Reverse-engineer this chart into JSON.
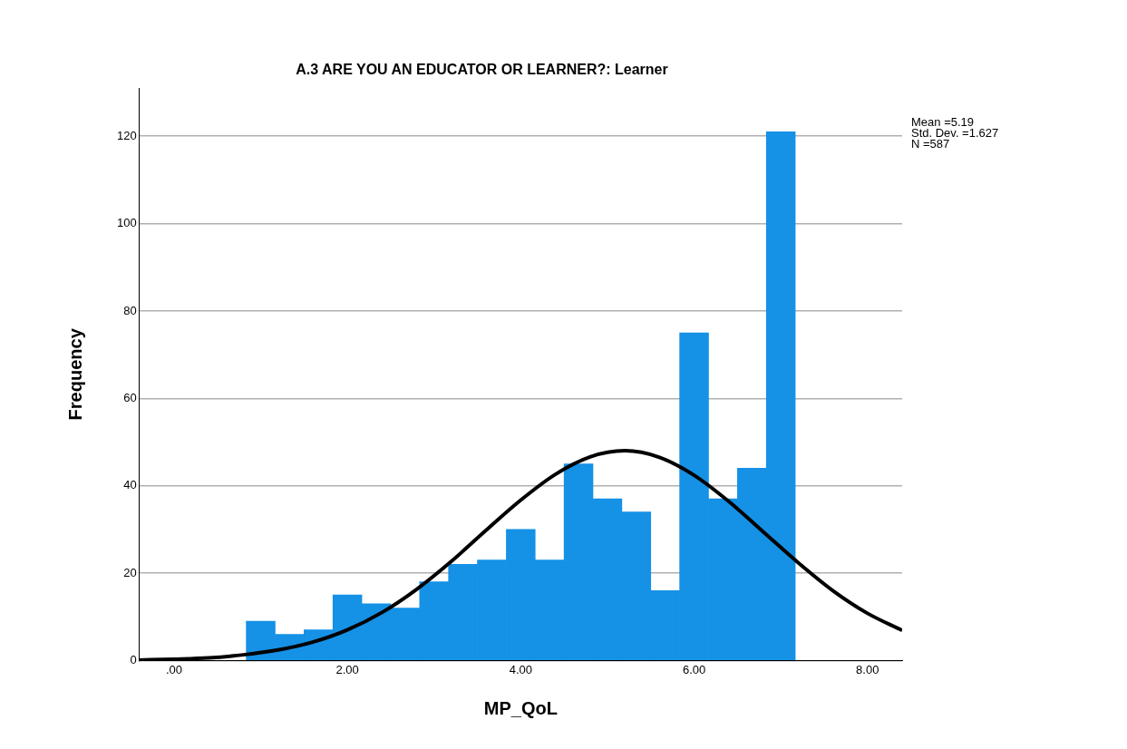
{
  "chart_data": {
    "type": "histogram",
    "title": "A.3 ARE YOU AN EDUCATOR OR LEARNER?: Learner",
    "xlabel": "MP_QoL",
    "ylabel": "Frequency",
    "bins": [
      0.833,
      1.167,
      1.5,
      1.833,
      2.167,
      2.5,
      2.833,
      3.167,
      3.5,
      3.833,
      4.167,
      4.5,
      4.833,
      5.167,
      5.5,
      5.833,
      6.167,
      6.5,
      6.833,
      7.167
    ],
    "values": [
      9,
      6,
      7,
      15,
      13,
      12,
      18,
      22,
      23,
      30,
      23,
      45,
      37,
      34,
      16,
      75,
      37,
      44,
      121
    ],
    "color": "#1591e6",
    "series": [
      {
        "type": "line",
        "color": "#000000",
        "x": [
          -0.4,
          0,
          0.4,
          0.8,
          1.2,
          1.6,
          2.0,
          2.4,
          2.8,
          3.2,
          3.6,
          4.0,
          4.4,
          4.8,
          5.2,
          5.6,
          6.0,
          6.4,
          6.8,
          7.2,
          7.6,
          8.0,
          8.4
        ],
        "values": [
          0.1,
          0.3,
          0.6,
          1.3,
          2.4,
          4.2,
          7.0,
          11.0,
          16.3,
          22.7,
          29.8,
          36.7,
          42.6,
          46.6,
          48.0,
          46.5,
          42.4,
          36.4,
          29.4,
          22.4,
          16.0,
          10.8,
          6.9
        ]
      }
    ],
    "xlim": [
      -0.4,
      8.4
    ],
    "xticks": [
      {
        "value": 0,
        "label": ".00"
      },
      {
        "value": 2,
        "label": "2.00"
      },
      {
        "value": 4,
        "label": "4.00"
      },
      {
        "value": 6,
        "label": "6.00"
      },
      {
        "value": 8,
        "label": "8.00"
      }
    ],
    "ylim": [
      0,
      131
    ],
    "yticks": [
      0,
      20,
      40,
      60,
      80,
      100,
      120
    ],
    "grid": "y",
    "annotations": [
      "Mean =5.19",
      "Std. Dev. =1.627",
      "N =587"
    ]
  }
}
